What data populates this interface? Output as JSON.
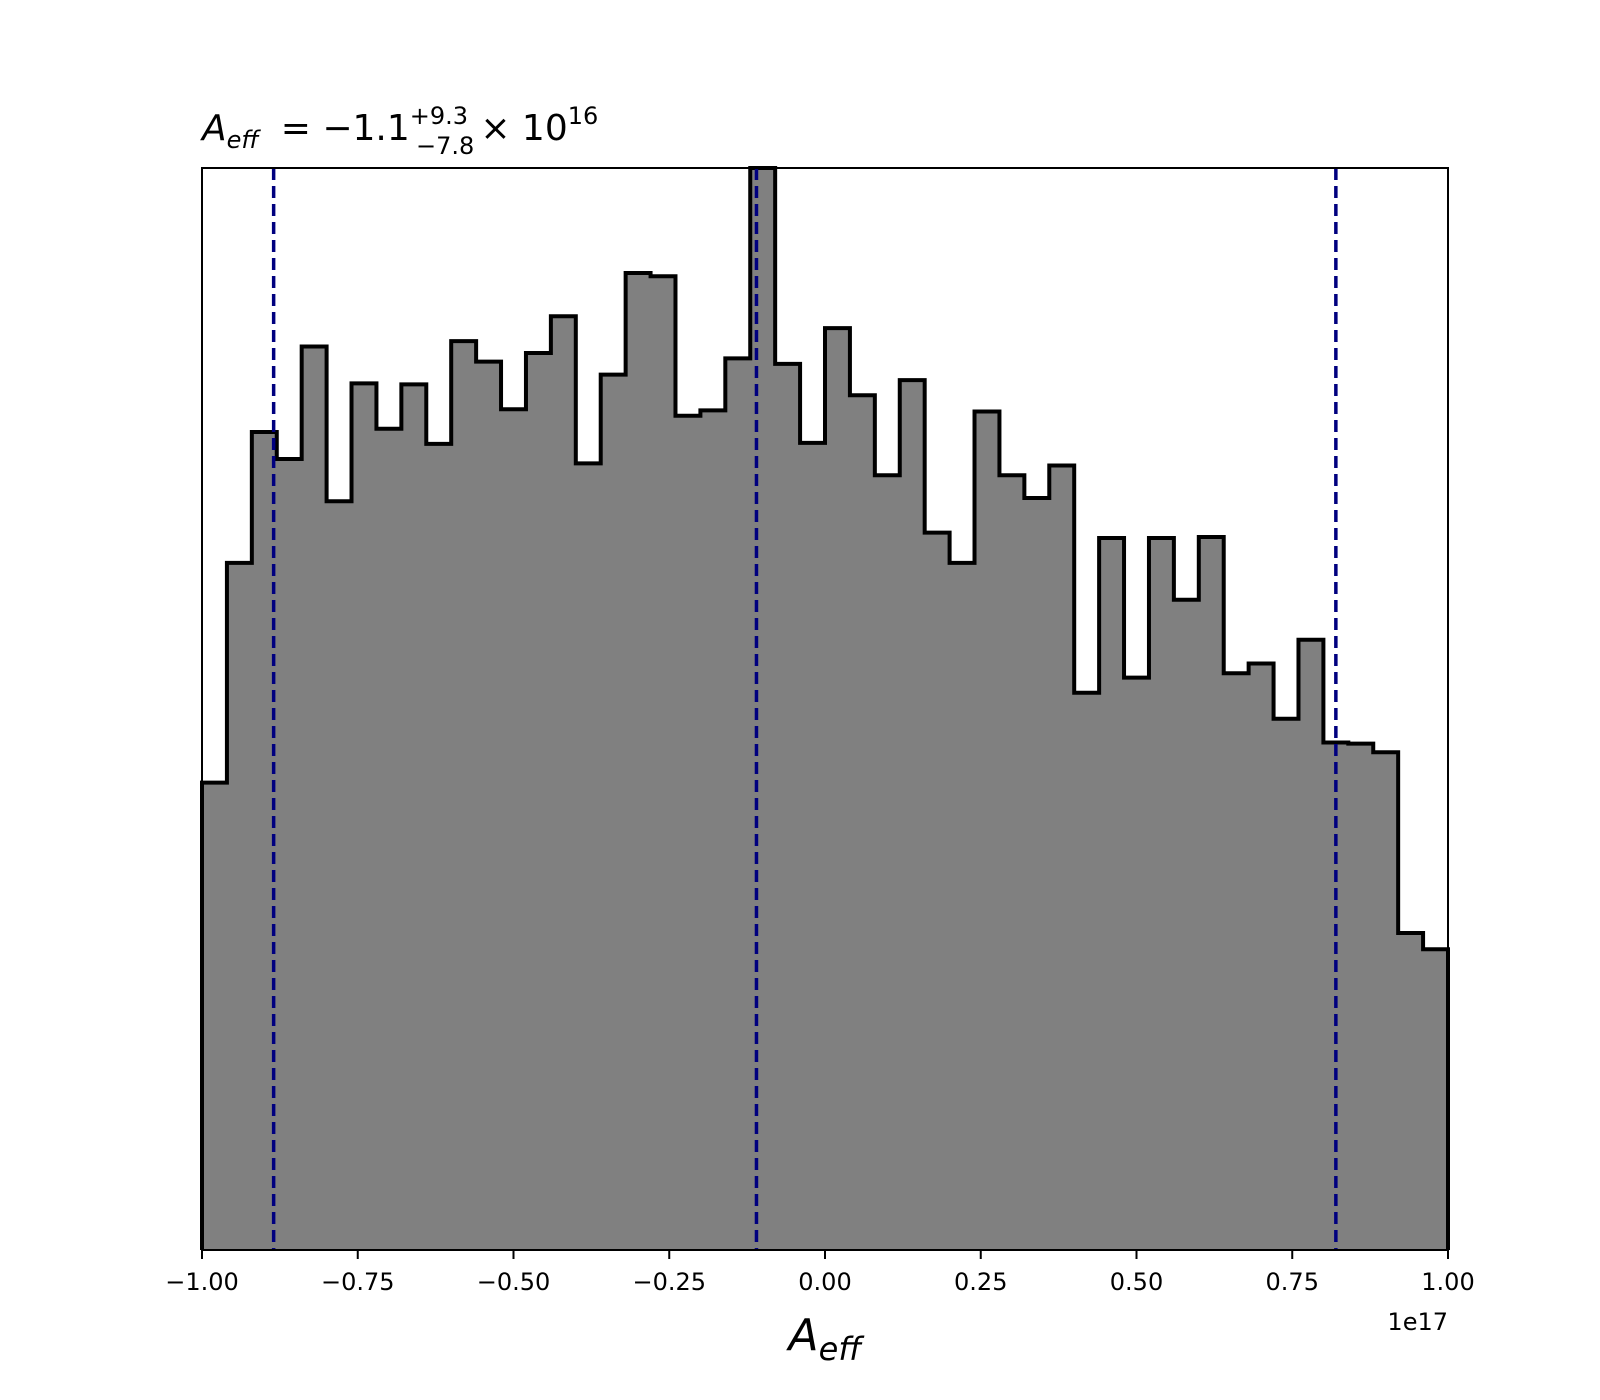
{
  "chart_data": {
    "type": "histogram",
    "title": {
      "symbol": "A",
      "symbol_sub": "eff",
      "equals": "= −1.1",
      "upper": "+9.3",
      "lower": "−7.8",
      "times": "× 10",
      "exponent": "16"
    },
    "xlabel": {
      "symbol": "A",
      "symbol_sub": "eff"
    },
    "offset_label": "1e17",
    "xlim": [
      -1.0,
      1.0
    ],
    "ylim": [
      0,
      1.0
    ],
    "xticks": [
      -1.0,
      -0.75,
      -0.5,
      -0.25,
      0.0,
      0.25,
      0.5,
      0.75,
      1.0
    ],
    "xtick_labels": [
      "−1.00",
      "−0.75",
      "−0.50",
      "−0.25",
      "0.00",
      "0.25",
      "0.50",
      "0.75",
      "1.00"
    ],
    "bin_edges_start": -1.0,
    "bin_width": 0.04,
    "values": [
      0.432,
      0.635,
      0.756,
      0.731,
      0.835,
      0.692,
      0.801,
      0.759,
      0.8,
      0.745,
      0.84,
      0.821,
      0.777,
      0.829,
      0.863,
      0.727,
      0.809,
      0.903,
      0.9,
      0.771,
      0.776,
      0.824,
      1.0,
      0.819,
      0.746,
      0.852,
      0.79,
      0.716,
      0.804,
      0.663,
      0.635,
      0.775,
      0.716,
      0.695,
      0.725,
      0.515,
      0.658,
      0.529,
      0.658,
      0.601,
      0.659,
      0.533,
      0.542,
      0.491,
      0.564,
      0.469,
      0.468,
      0.46,
      0.293,
      0.278
    ],
    "fill_color": "#808080",
    "edge_color": "#000000",
    "vlines": [
      {
        "x": -0.885,
        "style": "dashed",
        "color": "#00007f"
      },
      {
        "x": -0.11,
        "style": "dashed",
        "color": "#00007f"
      },
      {
        "x": 0.82,
        "style": "dashed",
        "color": "#00007f"
      }
    ]
  }
}
